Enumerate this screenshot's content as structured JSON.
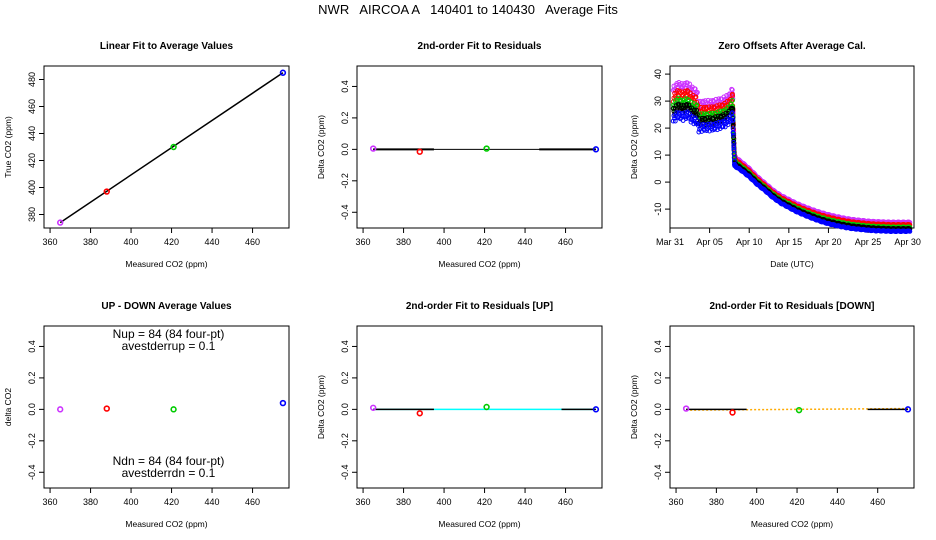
{
  "figure_title": "NWR   AIRCOA A   140401 to 140430   Average Fits",
  "chart_data": [
    {
      "id": "p1",
      "type": "scatter",
      "title": "Linear Fit to Average Values",
      "xlabel": "Measured CO2 (ppm)",
      "ylabel": "True CO2 (ppm)",
      "xlim": [
        357,
        478
      ],
      "ylim": [
        370,
        490
      ],
      "xticks": [
        360,
        380,
        400,
        420,
        440,
        460
      ],
      "yticks": [
        380,
        400,
        420,
        440,
        460,
        480
      ],
      "points": [
        {
          "x": 365,
          "y": 374,
          "color": "#cc33ff"
        },
        {
          "x": 388,
          "y": 397,
          "color": "#ff0000"
        },
        {
          "x": 421,
          "y": 430,
          "color": "#00cc00"
        },
        {
          "x": 475,
          "y": 485,
          "color": "#0000ff"
        }
      ],
      "lines": [
        {
          "x": [
            365,
            475
          ],
          "y": [
            374,
            485
          ],
          "color": "#000000",
          "width": 1.5
        }
      ]
    },
    {
      "id": "p2",
      "type": "scatter",
      "title": "2nd-order Fit to Residuals",
      "xlabel": "Measured CO2 (ppm)",
      "ylabel": "Delta CO2 (ppm)",
      "xlim": [
        357,
        478
      ],
      "ylim": [
        -0.5,
        0.53
      ],
      "xticks": [
        360,
        380,
        400,
        420,
        440,
        460
      ],
      "yticks": [
        -0.4,
        -0.2,
        0.0,
        0.2,
        0.4
      ],
      "points": [
        {
          "x": 365,
          "y": 0.005,
          "color": "#cc33ff"
        },
        {
          "x": 388,
          "y": -0.015,
          "color": "#ff0000"
        },
        {
          "x": 421,
          "y": 0.005,
          "color": "#00cc00"
        },
        {
          "x": 475,
          "y": 0.0,
          "color": "#0000ff"
        }
      ],
      "lines": [
        {
          "x": [
            365,
            475
          ],
          "y": [
            0.0,
            0.0
          ],
          "color": "#000000",
          "width": 1
        },
        {
          "x": [
            365,
            395
          ],
          "y": [
            0.0,
            0.0
          ],
          "color": "#000000",
          "width": 2
        },
        {
          "x": [
            447,
            475
          ],
          "y": [
            0.0,
            0.0
          ],
          "color": "#000000",
          "width": 2
        }
      ]
    },
    {
      "id": "p3",
      "type": "scatter",
      "title": "Zero Offsets After Average Cal.",
      "xlabel": "Date (UTC)",
      "ylabel": "Delta CO2 (ppm)",
      "xlim": [
        0,
        30.8
      ],
      "ylim": [
        -17,
        43
      ],
      "xticks": [
        0,
        5,
        10,
        15,
        20,
        25,
        30
      ],
      "xticklabels": [
        "Mar 31",
        "Apr 05",
        "Apr 10",
        "Apr 15",
        "Apr 20",
        "Apr 25",
        "Apr 30"
      ],
      "yticks": [
        -10,
        0,
        10,
        20,
        30,
        40
      ],
      "series": [
        {
          "name": "purple",
          "color": "#cc33ff",
          "offset": 0.0
        },
        {
          "name": "red",
          "color": "#ff0000",
          "offset": -0.6
        },
        {
          "name": "green",
          "color": "#00cc00",
          "offset": -1.2
        },
        {
          "name": "black",
          "color": "#000000",
          "offset": -1.6
        },
        {
          "name": "blue",
          "color": "#0000ff",
          "offset": -2.2
        }
      ],
      "curve": [
        [
          0.4,
          34
        ],
        [
          1.0,
          36
        ],
        [
          1.6,
          35
        ],
        [
          2.2,
          36
        ],
        [
          2.8,
          34
        ],
        [
          3.4,
          33.5
        ],
        [
          3.6,
          28.5
        ],
        [
          4.2,
          29
        ],
        [
          5,
          29
        ],
        [
          6,
          29.5
        ],
        [
          7,
          30.5
        ],
        [
          7.6,
          32
        ],
        [
          7.9,
          34
        ],
        [
          8.0,
          23
        ],
        [
          8.15,
          10
        ],
        [
          8.3,
          9
        ],
        [
          9,
          7.5
        ],
        [
          10,
          5
        ],
        [
          11,
          2
        ],
        [
          12,
          -0.5
        ],
        [
          13,
          -3
        ],
        [
          14,
          -5
        ],
        [
          15,
          -6.5
        ],
        [
          16,
          -8
        ],
        [
          17,
          -9.2
        ],
        [
          18,
          -10.3
        ],
        [
          19,
          -11.3
        ],
        [
          20,
          -12.1
        ],
        [
          21,
          -12.8
        ],
        [
          22,
          -13.4
        ],
        [
          23,
          -13.9
        ],
        [
          24,
          -14.2
        ],
        [
          25,
          -14.5
        ],
        [
          26,
          -14.7
        ],
        [
          27,
          -14.8
        ],
        [
          28,
          -14.9
        ],
        [
          29,
          -14.9
        ],
        [
          30,
          -14.9
        ],
        [
          30.3,
          -14.9
        ]
      ],
      "series_spread": [
        [
          0.4,
          5
        ],
        [
          3.4,
          5
        ],
        [
          3.6,
          4
        ],
        [
          7.9,
          4
        ],
        [
          8.2,
          1.5
        ],
        [
          12,
          1.2
        ],
        [
          20,
          1.5
        ],
        [
          30.3,
          1.5
        ]
      ]
    },
    {
      "id": "p4",
      "type": "scatter",
      "title": "UP - DOWN Average Values",
      "xlabel": "Measured CO2 (ppm)",
      "ylabel": "delta CO2",
      "xlim": [
        357,
        478
      ],
      "ylim": [
        -0.5,
        0.53
      ],
      "xticks": [
        360,
        380,
        400,
        420,
        440,
        460
      ],
      "yticks": [
        -0.4,
        -0.2,
        0.0,
        0.2,
        0.4
      ],
      "points": [
        {
          "x": 365,
          "y": 0.0,
          "color": "#cc33ff"
        },
        {
          "x": 388,
          "y": 0.005,
          "color": "#ff0000"
        },
        {
          "x": 421,
          "y": 0.0,
          "color": "#00cc00"
        },
        {
          "x": 475,
          "y": 0.04,
          "color": "#0000ff"
        }
      ],
      "annotations": {
        "nup": "Nup = 84 (84 four-pt)",
        "avestderrup": "avestderrup =  0.1",
        "ndn": "Ndn = 84 (84 four-pt)",
        "avestderrdn": "avestderrdn =  0.1"
      }
    },
    {
      "id": "p5",
      "type": "scatter",
      "title": "2nd-order Fit to Residuals [UP]",
      "xlabel": "Measured CO2 (ppm)",
      "ylabel": "Delta CO2 (ppm)",
      "xlim": [
        357,
        478
      ],
      "ylim": [
        -0.5,
        0.53
      ],
      "xticks": [
        360,
        380,
        400,
        420,
        440,
        460
      ],
      "yticks": [
        -0.4,
        -0.2,
        0.0,
        0.2,
        0.4
      ],
      "points": [
        {
          "x": 365,
          "y": 0.01,
          "color": "#cc33ff"
        },
        {
          "x": 388,
          "y": -0.025,
          "color": "#ff0000"
        },
        {
          "x": 421,
          "y": 0.015,
          "color": "#00cc00"
        },
        {
          "x": 475,
          "y": 0.0,
          "color": "#0000ff"
        }
      ],
      "lines": [
        {
          "x": [
            365,
            475
          ],
          "y": [
            0.0,
            0.0
          ],
          "color": "#00ffff",
          "width": 1.5
        },
        {
          "x": [
            365,
            395
          ],
          "y": [
            0.0,
            0.0
          ],
          "color": "#000000",
          "width": 1.5
        },
        {
          "x": [
            458,
            475
          ],
          "y": [
            0.0,
            0.0
          ],
          "color": "#000000",
          "width": 1.5
        }
      ]
    },
    {
      "id": "p6",
      "type": "scatter",
      "title": "2nd-order Fit to Residuals [DOWN]",
      "xlabel": "Measured CO2 (ppm)",
      "ylabel": "Delta CO2 (ppm)",
      "xlim": [
        357,
        478
      ],
      "ylim": [
        -0.5,
        0.53
      ],
      "xticks": [
        360,
        380,
        400,
        420,
        440,
        460
      ],
      "yticks": [
        -0.4,
        -0.2,
        0.0,
        0.2,
        0.4
      ],
      "points": [
        {
          "x": 365,
          "y": 0.005,
          "color": "#cc33ff"
        },
        {
          "x": 388,
          "y": -0.02,
          "color": "#ff0000"
        },
        {
          "x": 421,
          "y": -0.005,
          "color": "#00cc00"
        },
        {
          "x": 475,
          "y": 0.0,
          "color": "#0000ff"
        }
      ],
      "lines": [
        {
          "x": [
            365,
            475
          ],
          "y": [
            -0.005,
            0.005
          ],
          "color": "#ffaa00",
          "width": 1.5,
          "dash": "2,2"
        },
        {
          "x": [
            365,
            395
          ],
          "y": [
            0.0,
            0.0
          ],
          "color": "#000000",
          "width": 1.5
        },
        {
          "x": [
            455,
            475
          ],
          "y": [
            0.0,
            0.0
          ],
          "color": "#000000",
          "width": 1.5
        }
      ]
    }
  ]
}
